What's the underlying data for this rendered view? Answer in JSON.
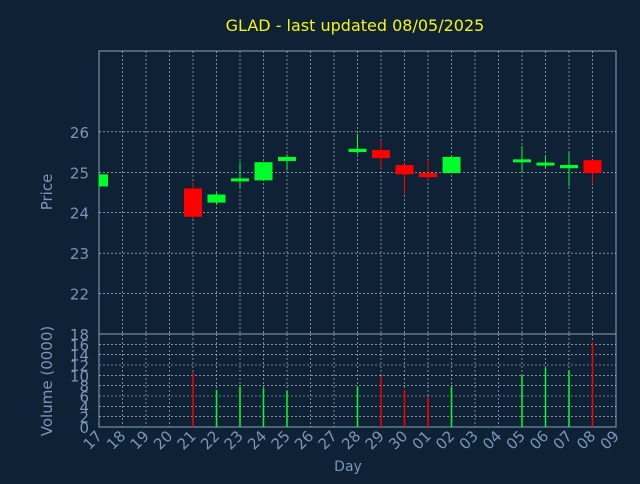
{
  "colors": {
    "background": "#0f2135",
    "title": "#f5f514",
    "axis_text": "#7a96b8",
    "frame": "#8aa2bf",
    "grid": "#c8d2de",
    "up": "#00ff2a",
    "down": "#ff0000"
  },
  "chart_data": [
    {
      "type": "candlestick",
      "title": "GLAD - last updated 08/05/2025",
      "ylabel": "Price",
      "ylim": [
        21.0,
        28.0
      ],
      "y_ticks": [
        22,
        23,
        24,
        25,
        26
      ],
      "x_ticks": [
        "17",
        "18",
        "19",
        "20",
        "21",
        "22",
        "23",
        "24",
        "25",
        "26",
        "27",
        "28",
        "29",
        "30",
        "01",
        "02",
        "03",
        "04",
        "05",
        "06",
        "07",
        "08",
        "09"
      ],
      "grid": true,
      "candles": [
        {
          "day": "17",
          "open": 24.65,
          "close": 24.95,
          "low": 24.6,
          "high": 24.95
        },
        {
          "day": "21",
          "open": 24.6,
          "close": 23.9,
          "low": 23.85,
          "high": 24.75
        },
        {
          "day": "22",
          "open": 24.25,
          "close": 24.45,
          "low": 24.2,
          "high": 24.5
        },
        {
          "day": "23",
          "open": 24.78,
          "close": 24.85,
          "low": 24.6,
          "high": 25.25
        },
        {
          "day": "24",
          "open": 24.8,
          "close": 25.25,
          "low": 24.8,
          "high": 25.25
        },
        {
          "day": "25",
          "open": 25.28,
          "close": 25.38,
          "low": 25.05,
          "high": 25.45
        },
        {
          "day": "28",
          "open": 25.5,
          "close": 25.58,
          "low": 25.45,
          "high": 25.95
        },
        {
          "day": "29",
          "open": 25.55,
          "close": 25.35,
          "low": 25.1,
          "high": 25.8
        },
        {
          "day": "30",
          "open": 25.18,
          "close": 24.95,
          "low": 24.45,
          "high": 25.2
        },
        {
          "day": "01",
          "open": 24.98,
          "close": 24.88,
          "low": 24.8,
          "high": 25.3
        },
        {
          "day": "02",
          "open": 24.98,
          "close": 25.38,
          "low": 24.98,
          "high": 25.38
        },
        {
          "day": "05",
          "open": 25.25,
          "close": 25.32,
          "low": 24.98,
          "high": 25.65
        },
        {
          "day": "06",
          "open": 25.2,
          "close": 25.24,
          "low": 25.1,
          "high": 25.4
        },
        {
          "day": "07",
          "open": 25.1,
          "close": 25.18,
          "low": 24.65,
          "high": 25.5
        },
        {
          "day": "08",
          "open": 25.3,
          "close": 24.98,
          "low": 24.7,
          "high": 25.3
        }
      ]
    },
    {
      "type": "bar",
      "title": "",
      "xlabel": "Day",
      "ylabel": "Volume (0000)",
      "ylim": [
        0,
        18
      ],
      "y_ticks": [
        0,
        2,
        4,
        6,
        8,
        10,
        12,
        14,
        16,
        18
      ],
      "x_ticks": [
        "17",
        "18",
        "19",
        "20",
        "21",
        "22",
        "23",
        "24",
        "25",
        "26",
        "27",
        "28",
        "29",
        "30",
        "01",
        "02",
        "03",
        "04",
        "05",
        "06",
        "07",
        "08",
        "09"
      ],
      "grid": true,
      "bars": [
        {
          "day": "21",
          "value": 10.5,
          "direction": "down"
        },
        {
          "day": "22",
          "value": 7.2,
          "direction": "up"
        },
        {
          "day": "23",
          "value": 7.8,
          "direction": "up"
        },
        {
          "day": "24",
          "value": 7.5,
          "direction": "up"
        },
        {
          "day": "25",
          "value": 7.0,
          "direction": "up"
        },
        {
          "day": "28",
          "value": 7.8,
          "direction": "up"
        },
        {
          "day": "29",
          "value": 9.8,
          "direction": "down"
        },
        {
          "day": "30",
          "value": 7.2,
          "direction": "down"
        },
        {
          "day": "01",
          "value": 5.8,
          "direction": "down"
        },
        {
          "day": "02",
          "value": 7.8,
          "direction": "up"
        },
        {
          "day": "05",
          "value": 10.0,
          "direction": "up"
        },
        {
          "day": "06",
          "value": 11.5,
          "direction": "up"
        },
        {
          "day": "07",
          "value": 11.0,
          "direction": "up"
        },
        {
          "day": "08",
          "value": 16.5,
          "direction": "down"
        }
      ]
    }
  ]
}
